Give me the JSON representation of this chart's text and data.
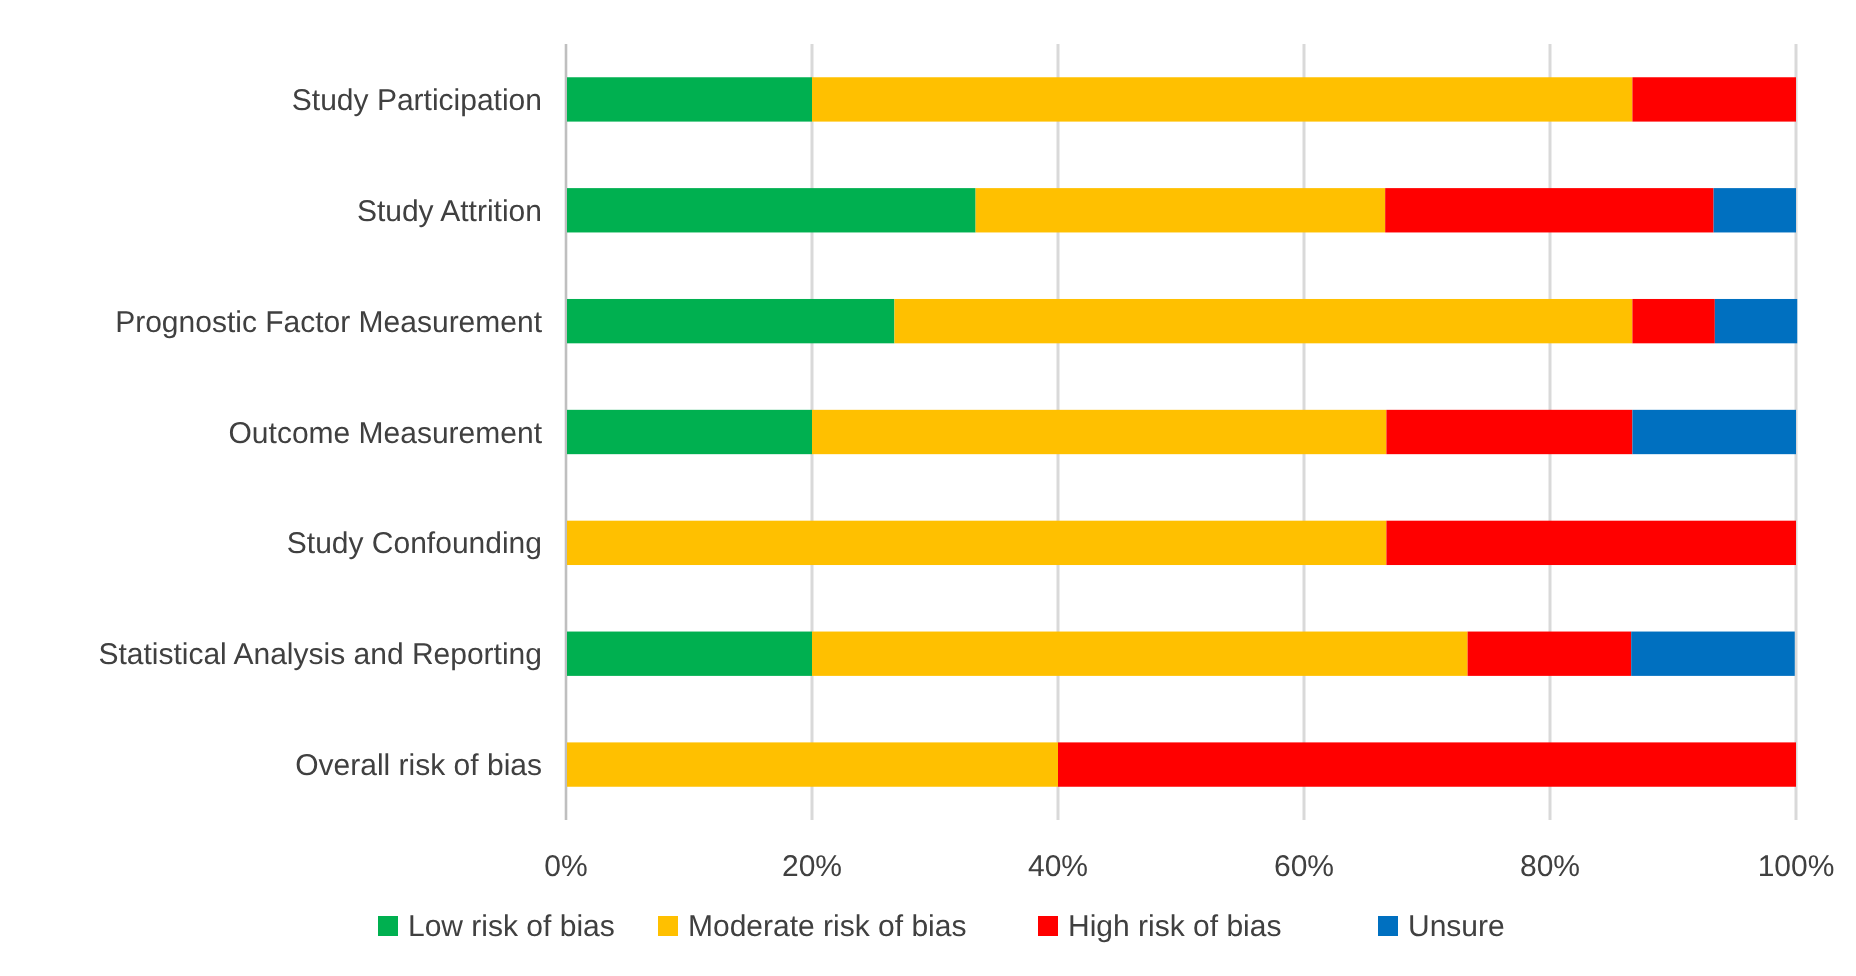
{
  "chart_data": {
    "type": "bar",
    "orientation": "horizontal",
    "stacked": true,
    "categories": [
      "Study Participation",
      "Study Attrition",
      "Prognostic Factor Measurement",
      "Outcome Measurement",
      "Study Confounding",
      "Statistical Analysis and Reporting",
      "Overall risk of bias"
    ],
    "series": [
      {
        "name": "Low risk of bias",
        "color": "#00b050",
        "values": [
          20,
          33.3,
          26.7,
          20,
          0,
          20,
          0
        ]
      },
      {
        "name": "Moderate risk of bias",
        "color": "#ffc000",
        "values": [
          66.7,
          33.3,
          60,
          46.7,
          66.7,
          53.3,
          40
        ]
      },
      {
        "name": "High risk of bias",
        "color": "#ff0000",
        "values": [
          13.3,
          26.7,
          6.7,
          20,
          33.3,
          13.3,
          60
        ]
      },
      {
        "name": "Unsure",
        "color": "#0070c0",
        "values": [
          0,
          6.7,
          6.7,
          13.3,
          0,
          13.3,
          0
        ]
      }
    ],
    "xlim": [
      0,
      100
    ],
    "xticks": [
      {
        "value": 0,
        "label": "0%"
      },
      {
        "value": 20,
        "label": "20%"
      },
      {
        "value": 40,
        "label": "40%"
      },
      {
        "value": 60,
        "label": "60%"
      },
      {
        "value": 80,
        "label": "80%"
      },
      {
        "value": 100,
        "label": "100%"
      }
    ],
    "grid": "x",
    "legend": "bottom"
  }
}
